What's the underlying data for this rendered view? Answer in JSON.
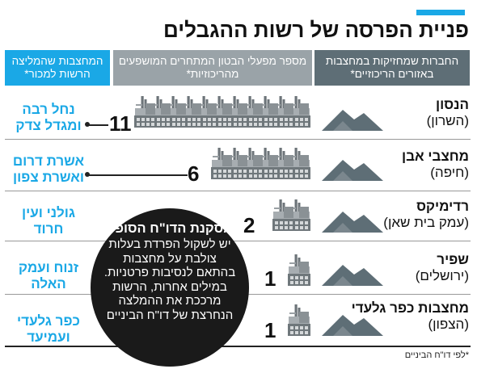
{
  "title": "פניית הפרסה של רשות ההגבלים",
  "headers": {
    "companies": "החברות שמחזיקות במחצבות באזורים הריכוזיים*",
    "plants": "מספר מפעלי הבטון המתחרים המושפעים מהריכוזיות*",
    "sell": "המחצבות שהמליצה הרשות למכור*"
  },
  "rows": [
    {
      "name": "הנסון",
      "region": "(השרון)",
      "count": "11",
      "plants": 11,
      "sell": "נחל רבה ומגדל צדק"
    },
    {
      "name": "מחצבי אבן",
      "region": "(חיפה)",
      "count": "6",
      "plants": 6,
      "sell": "אשרת דרום ואשרת צפון"
    },
    {
      "name": "רדימיקס",
      "region": "(עמק בית שאן)",
      "count": "2",
      "plants": 2,
      "sell": "גולני ועין חרוד"
    },
    {
      "name": "שפיר",
      "region": "(ירושלים)",
      "count": "1",
      "plants": 1,
      "sell": "זנוח ועמק האלה"
    },
    {
      "name": "מחצבות כפר גלעדי",
      "region": "(הצפון)",
      "count": "1",
      "plants": 1,
      "sell": "כפר גלעדי ועמיעד"
    }
  ],
  "conclusion": {
    "title": "מסקנת הדו\"ח הסופי:",
    "body": "יש לשקול הפרדת בעלות צולבת על מחצבות בהתאם לנסיבות פרטניות. במילים אחרות, הרשות מרככת את ההמלצה הנחרצת של דו\"ח הביניים"
  },
  "footnote": "*לפי דו\"ח הביניים",
  "colors": {
    "accent": "#1aa8e6",
    "header_dark": "#5e6e76",
    "header_gray": "#9aa3a8",
    "circle": "#1a1a1a"
  },
  "icons": [
    "gravel-pile-icon",
    "concrete-plant-icon"
  ]
}
